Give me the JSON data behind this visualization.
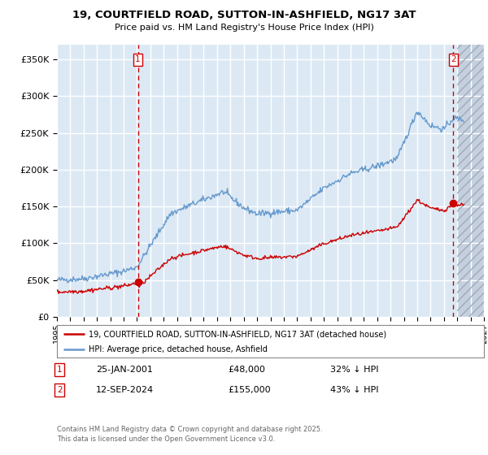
{
  "title": "19, COURTFIELD ROAD, SUTTON-IN-ASHFIELD, NG17 3AT",
  "subtitle": "Price paid vs. HM Land Registry's House Price Index (HPI)",
  "legend_label_red": "19, COURTFIELD ROAD, SUTTON-IN-ASHFIELD, NG17 3AT (detached house)",
  "legend_label_blue": "HPI: Average price, detached house, Ashfield",
  "footnote": "Contains HM Land Registry data © Crown copyright and database right 2025.\nThis data is licensed under the Open Government Licence v3.0.",
  "sale1_label": "1",
  "sale1_date": "25-JAN-2001",
  "sale1_price": "£48,000",
  "sale1_hpi": "32% ↓ HPI",
  "sale2_label": "2",
  "sale2_date": "12-SEP-2024",
  "sale2_price": "£155,000",
  "sale2_hpi": "43% ↓ HPI",
  "xmin": 1995.0,
  "xmax": 2027.0,
  "ymin": 0,
  "ymax": 370000,
  "yticks": [
    0,
    50000,
    100000,
    150000,
    200000,
    250000,
    300000,
    350000
  ],
  "ytick_labels": [
    "£0",
    "£50K",
    "£100K",
    "£150K",
    "£200K",
    "£250K",
    "£300K",
    "£350K"
  ],
  "sale1_x": 2001.07,
  "sale1_y": 48000,
  "sale2_x": 2024.71,
  "sale2_y": 155000,
  "future_start": 2025.0,
  "bg_color": "#dce9f5",
  "future_bg_color": "#c8d4e4",
  "red_line_color": "#cc0000",
  "blue_line_color": "#6699cc",
  "grid_color": "#ffffff",
  "vline_color": "#cc0000"
}
